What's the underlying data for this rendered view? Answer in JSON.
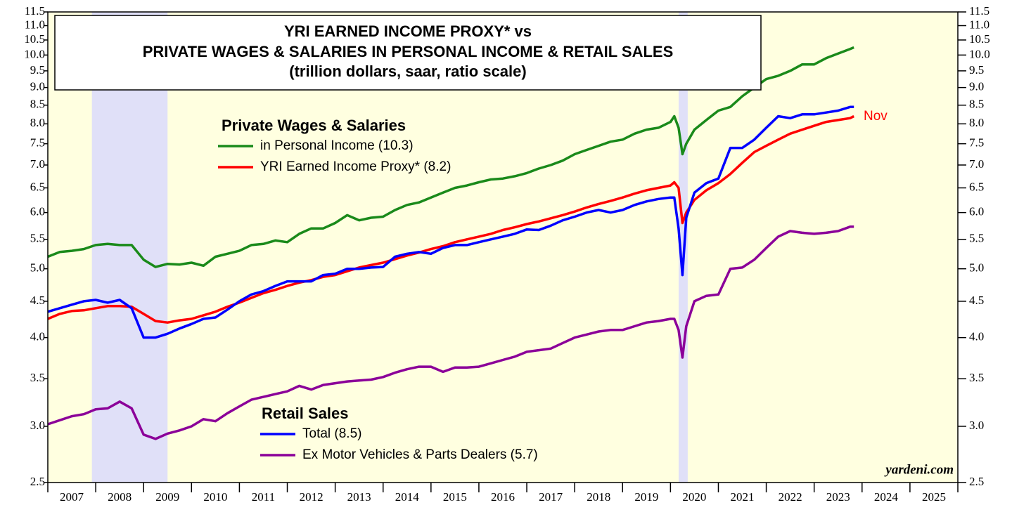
{
  "chart_data": {
    "type": "line",
    "title": [
      "YRI EARNED INCOME PROXY* vs",
      "PRIVATE WAGES & SALARIES IN PERSONAL INCOME & RETAIL SALES",
      "(trillion dollars, saar, ratio scale)"
    ],
    "legend_titles": [
      "Private Wages & Salaries",
      "Retail Sales"
    ],
    "annotations": [
      {
        "text": "Nov"
      },
      {
        "text": "yardeni.com"
      }
    ],
    "log_scale": true,
    "plot_background": "#ffffe0",
    "recession_color": "#e0e0f8",
    "recessions": [
      [
        2007.92,
        2009.5
      ],
      [
        2020.17,
        2020.36
      ]
    ],
    "xlim": [
      2007,
      2026
    ],
    "xticks": [
      2007,
      2008,
      2009,
      2010,
      2011,
      2012,
      2013,
      2014,
      2015,
      2016,
      2017,
      2018,
      2019,
      2020,
      2021,
      2022,
      2023,
      2024,
      2025,
      2026
    ],
    "ylim": [
      2.5,
      11.5
    ],
    "yticks": [
      2.5,
      {
        "value": 3,
        "label": "3.0"
      },
      3.5,
      {
        "value": 4,
        "label": "4.0"
      },
      4.5,
      {
        "value": 5,
        "label": "5.0"
      },
      5.5,
      {
        "value": 6,
        "label": "6.0"
      },
      6.5,
      {
        "value": 7,
        "label": "7.0"
      },
      7.5,
      {
        "value": 8,
        "label": "8.0"
      },
      8.5,
      {
        "value": 9,
        "label": "9.0"
      },
      9.5,
      {
        "value": 10,
        "label": "10.0"
      },
      10.5,
      {
        "value": 11,
        "label": "11.0"
      },
      11.5
    ],
    "x": [
      2007.0,
      2007.25,
      2007.5,
      2007.75,
      2008.0,
      2008.25,
      2008.5,
      2008.75,
      2009.0,
      2009.25,
      2009.5,
      2009.75,
      2010.0,
      2010.25,
      2010.5,
      2010.75,
      2011.0,
      2011.25,
      2011.5,
      2011.75,
      2012.0,
      2012.25,
      2012.5,
      2012.75,
      2013.0,
      2013.25,
      2013.5,
      2013.75,
      2014.0,
      2014.25,
      2014.5,
      2014.75,
      2015.0,
      2015.25,
      2015.5,
      2015.75,
      2016.0,
      2016.25,
      2016.5,
      2016.75,
      2017.0,
      2017.25,
      2017.5,
      2017.75,
      2018.0,
      2018.25,
      2018.5,
      2018.75,
      2019.0,
      2019.25,
      2019.5,
      2019.75,
      2020.0,
      2020.08,
      2020.17,
      2020.25,
      2020.33,
      2020.5,
      2020.75,
      2021.0,
      2021.25,
      2021.5,
      2021.75,
      2022.0,
      2022.25,
      2022.5,
      2022.75,
      2023.0,
      2023.25,
      2023.5,
      2023.75,
      2023.83
    ],
    "series": [
      {
        "name": "in Personal Income (10.3)",
        "color": "#1a8a1a",
        "values": [
          5.2,
          5.28,
          5.3,
          5.33,
          5.4,
          5.42,
          5.4,
          5.4,
          5.15,
          5.03,
          5.08,
          5.07,
          5.1,
          5.05,
          5.2,
          5.25,
          5.3,
          5.4,
          5.42,
          5.48,
          5.45,
          5.6,
          5.7,
          5.7,
          5.8,
          5.95,
          5.85,
          5.9,
          5.92,
          6.05,
          6.15,
          6.2,
          6.3,
          6.4,
          6.5,
          6.55,
          6.62,
          6.68,
          6.7,
          6.75,
          6.82,
          6.92,
          7.0,
          7.1,
          7.25,
          7.35,
          7.45,
          7.55,
          7.6,
          7.75,
          7.85,
          7.9,
          8.05,
          8.2,
          7.9,
          7.25,
          7.5,
          7.85,
          8.1,
          8.35,
          8.45,
          8.75,
          9.0,
          9.25,
          9.35,
          9.5,
          9.7,
          9.7,
          9.9,
          10.05,
          10.2,
          10.25
        ]
      },
      {
        "name": "YRI Earned Income Proxy* (8.2)",
        "color": "#ff0000",
        "values": [
          4.25,
          4.32,
          4.36,
          4.37,
          4.4,
          4.43,
          4.43,
          4.42,
          4.32,
          4.22,
          4.2,
          4.23,
          4.25,
          4.3,
          4.35,
          4.42,
          4.48,
          4.55,
          4.62,
          4.67,
          4.73,
          4.78,
          4.82,
          4.87,
          4.9,
          4.96,
          5.02,
          5.06,
          5.1,
          5.16,
          5.22,
          5.27,
          5.33,
          5.38,
          5.45,
          5.5,
          5.55,
          5.6,
          5.67,
          5.72,
          5.78,
          5.83,
          5.89,
          5.95,
          6.02,
          6.1,
          6.17,
          6.23,
          6.3,
          6.38,
          6.45,
          6.5,
          6.55,
          6.62,
          6.5,
          5.8,
          6.0,
          6.25,
          6.45,
          6.6,
          6.8,
          7.05,
          7.3,
          7.45,
          7.6,
          7.75,
          7.85,
          7.95,
          8.05,
          8.1,
          8.15,
          8.2
        ]
      },
      {
        "name": "Total (8.5)",
        "color": "#0000ff",
        "values": [
          4.35,
          4.4,
          4.45,
          4.5,
          4.52,
          4.48,
          4.52,
          4.4,
          4.0,
          4.0,
          4.05,
          4.12,
          4.18,
          4.25,
          4.27,
          4.38,
          4.5,
          4.6,
          4.65,
          4.73,
          4.8,
          4.8,
          4.8,
          4.9,
          4.92,
          5.0,
          5.0,
          5.02,
          5.03,
          5.2,
          5.25,
          5.28,
          5.25,
          5.35,
          5.4,
          5.4,
          5.45,
          5.5,
          5.55,
          5.6,
          5.68,
          5.67,
          5.75,
          5.85,
          5.92,
          6.0,
          6.05,
          6.0,
          6.05,
          6.15,
          6.22,
          6.27,
          6.3,
          6.3,
          5.7,
          4.9,
          5.9,
          6.4,
          6.6,
          6.7,
          7.4,
          7.4,
          7.6,
          7.9,
          8.2,
          8.15,
          8.25,
          8.25,
          8.3,
          8.35,
          8.45,
          8.45
        ]
      },
      {
        "name": "Ex Motor Vehicles & Parts Dealers (5.7)",
        "color": "#8b0099",
        "values": [
          3.02,
          3.06,
          3.1,
          3.12,
          3.17,
          3.18,
          3.25,
          3.18,
          2.92,
          2.88,
          2.93,
          2.96,
          3.0,
          3.07,
          3.05,
          3.13,
          3.2,
          3.27,
          3.3,
          3.33,
          3.36,
          3.42,
          3.38,
          3.43,
          3.45,
          3.47,
          3.48,
          3.49,
          3.52,
          3.57,
          3.61,
          3.64,
          3.64,
          3.58,
          3.63,
          3.63,
          3.64,
          3.68,
          3.72,
          3.76,
          3.82,
          3.84,
          3.86,
          3.93,
          4.0,
          4.04,
          4.08,
          4.1,
          4.1,
          4.15,
          4.2,
          4.22,
          4.25,
          4.25,
          4.1,
          3.75,
          4.15,
          4.5,
          4.58,
          4.6,
          5.0,
          5.02,
          5.15,
          5.35,
          5.55,
          5.65,
          5.62,
          5.6,
          5.62,
          5.65,
          5.73,
          5.73
        ]
      }
    ]
  }
}
